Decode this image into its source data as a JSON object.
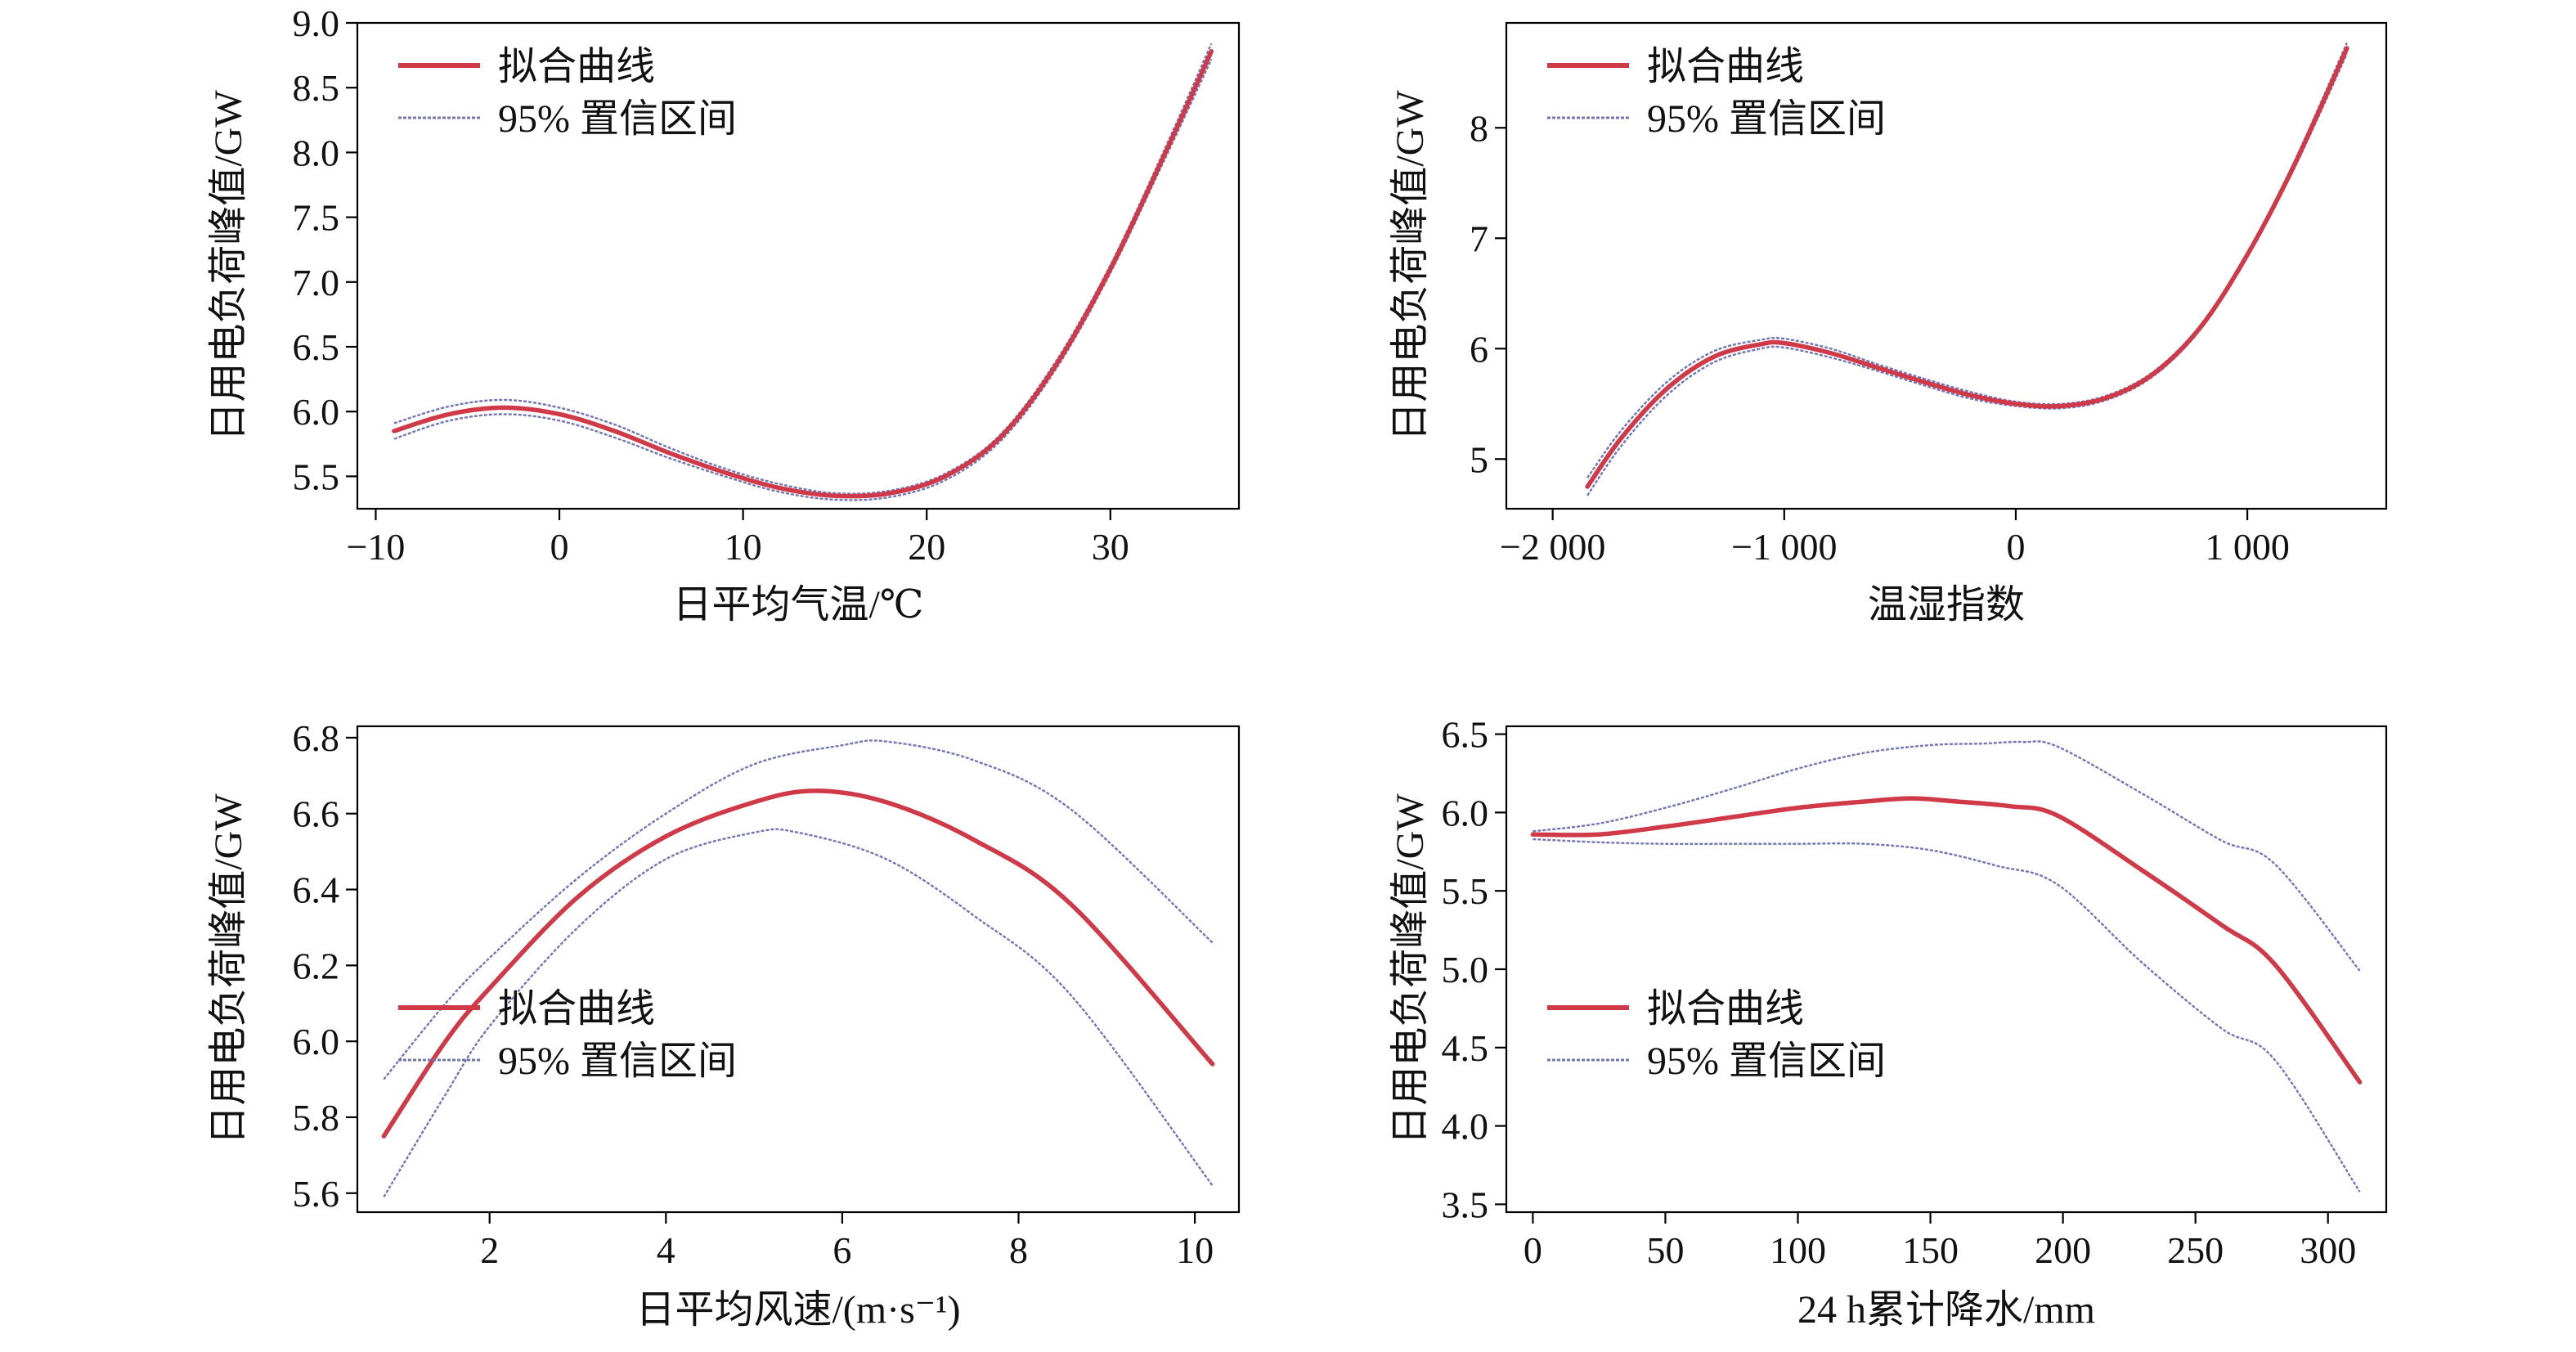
{
  "colors": {
    "fit": "#d03a48",
    "ci": "#7276b8",
    "axis": "#000000",
    "text": "#111111"
  },
  "chart_data": [
    {
      "type": "line",
      "xlabel": "日平均气温/℃",
      "ylabel": "日用电负荷峰值/GW",
      "xlim": [
        -11,
        37
      ],
      "ylim": [
        5.25,
        9.0
      ],
      "xticks": [
        -10,
        0,
        10,
        20,
        30
      ],
      "xtick_labels": [
        "−10",
        "0",
        "10",
        "20",
        "30"
      ],
      "yticks": [
        5.5,
        6.0,
        6.5,
        7.0,
        7.5,
        8.0,
        8.5,
        9.0
      ],
      "ytick_labels": [
        "5.5",
        "6.0",
        "6.5",
        "7.0",
        "7.5",
        "8.0",
        "8.5",
        "9.0"
      ],
      "legend": {
        "position": "top-left",
        "entries": [
          "拟合曲线",
          "95% 置信区间"
        ]
      },
      "series": [
        {
          "name": "拟合曲线",
          "x": [
            -9,
            -6,
            -3,
            0,
            3,
            6,
            9,
            12,
            15,
            18,
            21,
            24,
            27,
            30,
            33,
            35.5
          ],
          "values": [
            5.85,
            5.98,
            6.03,
            5.98,
            5.85,
            5.68,
            5.53,
            5.41,
            5.35,
            5.37,
            5.5,
            5.8,
            6.35,
            7.1,
            8.0,
            8.78
          ]
        },
        {
          "name": "95% 置信区间",
          "x": [
            -9,
            -6,
            -3,
            0,
            3,
            6,
            9,
            12,
            15,
            18,
            21,
            24,
            27,
            30,
            33,
            35.5
          ],
          "values": [
            5.91,
            6.04,
            6.09,
            6.03,
            5.9,
            5.72,
            5.56,
            5.44,
            5.37,
            5.39,
            5.52,
            5.82,
            6.38,
            7.13,
            8.04,
            8.84
          ]
        },
        {
          "name": "95% 置信区间",
          "x": [
            -9,
            -6,
            -3,
            0,
            3,
            6,
            9,
            12,
            15,
            18,
            21,
            24,
            27,
            30,
            33,
            35.5
          ],
          "values": [
            5.79,
            5.93,
            5.98,
            5.93,
            5.8,
            5.64,
            5.5,
            5.38,
            5.32,
            5.34,
            5.47,
            5.77,
            6.32,
            7.07,
            7.96,
            8.72
          ]
        }
      ]
    },
    {
      "type": "line",
      "xlabel": "温湿指数",
      "ylabel": "日用电负荷峰值/GW",
      "xlim": [
        -2200,
        1600
      ],
      "ylim": [
        4.55,
        8.95
      ],
      "xticks": [
        -2000,
        -1000,
        0,
        1000
      ],
      "xtick_labels": [
        "−2 000",
        "−1 000",
        "0",
        "1 000"
      ],
      "yticks": [
        5,
        6,
        7,
        8
      ],
      "ytick_labels": [
        "5",
        "6",
        "7",
        "8"
      ],
      "legend": {
        "position": "top-left",
        "entries": [
          "拟合曲线",
          "95% 置信区间"
        ]
      },
      "series": [
        {
          "name": "拟合曲线",
          "x": [
            -1850,
            -1700,
            -1500,
            -1300,
            -1100,
            -1000,
            -800,
            -600,
            -400,
            -200,
            0,
            200,
            400,
            600,
            800,
            1000,
            1200,
            1430
          ],
          "values": [
            4.75,
            5.2,
            5.65,
            5.93,
            6.04,
            6.05,
            5.96,
            5.83,
            5.7,
            5.58,
            5.5,
            5.48,
            5.56,
            5.78,
            6.2,
            6.85,
            7.65,
            8.72
          ]
        },
        {
          "name": "95% 置信区间",
          "x": [
            -1850,
            -1700,
            -1500,
            -1300,
            -1100,
            -1000,
            -800,
            -600,
            -400,
            -200,
            0,
            200,
            400,
            600,
            800,
            1000,
            1200,
            1430
          ],
          "values": [
            4.83,
            5.27,
            5.71,
            5.98,
            6.08,
            6.09,
            6.0,
            5.86,
            5.73,
            5.61,
            5.52,
            5.5,
            5.58,
            5.8,
            6.22,
            6.87,
            7.68,
            8.77
          ]
        },
        {
          "name": "95% 置信区间",
          "x": [
            -1850,
            -1700,
            -1500,
            -1300,
            -1100,
            -1000,
            -800,
            -600,
            -400,
            -200,
            0,
            200,
            400,
            600,
            800,
            1000,
            1200,
            1430
          ],
          "values": [
            4.67,
            5.13,
            5.59,
            5.88,
            6.0,
            6.01,
            5.92,
            5.8,
            5.67,
            5.55,
            5.48,
            5.46,
            5.54,
            5.76,
            6.18,
            6.83,
            7.62,
            8.67
          ]
        }
      ]
    },
    {
      "type": "line",
      "xlabel": "日平均风速/(m·s⁻¹)",
      "ylabel": "日用电负荷峰值/GW",
      "xlim": [
        0.5,
        10.5
      ],
      "ylim": [
        5.55,
        6.83
      ],
      "xticks": [
        2,
        4,
        6,
        8,
        10
      ],
      "xtick_labels": [
        "2",
        "4",
        "6",
        "8",
        "10"
      ],
      "yticks": [
        5.6,
        5.8,
        6.0,
        6.2,
        6.4,
        6.6,
        6.8
      ],
      "ytick_labels": [
        "5.6",
        "5.8",
        "6.0",
        "6.2",
        "6.4",
        "6.6",
        "6.8"
      ],
      "legend": {
        "position": "bottom-left",
        "entries": [
          "拟合曲线",
          "95% 置信区间"
        ]
      },
      "series": [
        {
          "name": "拟合曲线",
          "x": [
            0.8,
            1.5,
            2,
            3,
            4,
            5,
            5.7,
            6.5,
            7.5,
            8.6,
            10.2
          ],
          "values": [
            5.75,
            6.0,
            6.14,
            6.38,
            6.54,
            6.63,
            6.66,
            6.63,
            6.53,
            6.36,
            5.94
          ]
        },
        {
          "name": "95% 置信区间",
          "x": [
            0.8,
            1.5,
            2,
            3,
            4,
            5,
            6,
            6.5,
            7.5,
            8.6,
            10.2
          ],
          "values": [
            5.9,
            6.1,
            6.22,
            6.43,
            6.6,
            6.73,
            6.78,
            6.79,
            6.74,
            6.61,
            6.26
          ]
        },
        {
          "name": "95% 置信区间",
          "x": [
            0.8,
            1.5,
            2,
            3,
            4,
            5,
            5.5,
            6.5,
            7.5,
            8.6,
            10.2
          ],
          "values": [
            5.59,
            5.86,
            6.04,
            6.3,
            6.48,
            6.55,
            6.55,
            6.48,
            6.33,
            6.12,
            5.62
          ]
        }
      ]
    },
    {
      "type": "line",
      "xlabel": "24 h累计降水/mm",
      "ylabel": "日用电负荷峰值/GW",
      "xlim": [
        -10,
        322
      ],
      "ylim": [
        3.45,
        6.55
      ],
      "xticks": [
        0,
        50,
        100,
        150,
        200,
        250,
        300
      ],
      "xtick_labels": [
        "0",
        "50",
        "100",
        "150",
        "200",
        "250",
        "300"
      ],
      "yticks": [
        3.5,
        4.0,
        4.5,
        5.0,
        5.5,
        6.0,
        6.5
      ],
      "ytick_labels": [
        "3.5",
        "4.0",
        "4.5",
        "5.0",
        "5.5",
        "6.0",
        "6.5"
      ],
      "legend": {
        "position": "bottom-left",
        "entries": [
          "拟合曲线",
          "95% 置信区间"
        ]
      },
      "series": [
        {
          "name": "拟合曲线",
          "x": [
            0,
            25,
            50,
            75,
            100,
            125,
            143,
            160,
            180,
            198,
            230,
            260,
            280,
            312
          ],
          "values": [
            5.86,
            5.86,
            5.91,
            5.97,
            6.03,
            6.07,
            6.09,
            6.07,
            6.04,
            5.98,
            5.63,
            5.28,
            5.03,
            4.28
          ]
        },
        {
          "name": "95% 置信区间",
          "x": [
            0,
            25,
            50,
            75,
            100,
            125,
            150,
            170,
            185,
            198,
            230,
            260,
            280,
            312
          ],
          "values": [
            5.88,
            5.93,
            6.03,
            6.15,
            6.28,
            6.38,
            6.43,
            6.44,
            6.45,
            6.42,
            6.12,
            5.82,
            5.67,
            4.99
          ]
        },
        {
          "name": "95% 置信区间",
          "x": [
            0,
            25,
            50,
            75,
            100,
            125,
            150,
            175,
            198,
            230,
            260,
            280,
            312
          ],
          "values": [
            5.83,
            5.81,
            5.8,
            5.8,
            5.8,
            5.8,
            5.76,
            5.66,
            5.54,
            5.04,
            4.62,
            4.42,
            3.58
          ]
        }
      ]
    }
  ]
}
